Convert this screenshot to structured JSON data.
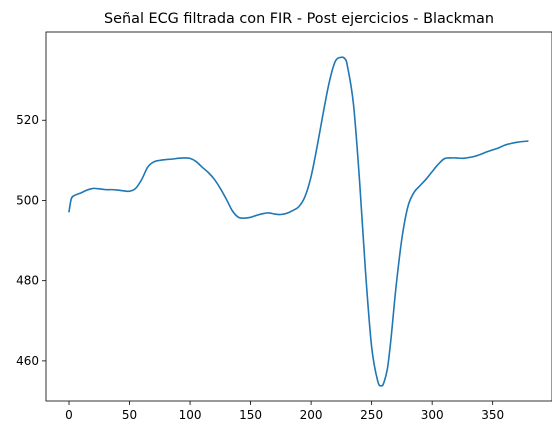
{
  "chart_data": {
    "type": "line",
    "title": "Señal ECG filtrada con FIR - Post ejercicios - Blackman",
    "xlabel": "",
    "ylabel": "",
    "xlim": [
      -19,
      399
    ],
    "ylim": [
      450,
      542
    ],
    "xticks": [
      0,
      50,
      100,
      150,
      200,
      250,
      300,
      350
    ],
    "yticks": [
      460,
      480,
      500,
      520
    ],
    "grid": false,
    "legend": "none",
    "series": [
      {
        "color": "#1f77b4",
        "x": [
          0,
          2,
          5,
          10,
          15,
          20,
          25,
          30,
          35,
          40,
          45,
          50,
          55,
          60,
          65,
          70,
          75,
          80,
          85,
          90,
          95,
          100,
          105,
          110,
          115,
          120,
          125,
          130,
          135,
          140,
          145,
          150,
          155,
          160,
          165,
          170,
          175,
          180,
          185,
          190,
          195,
          200,
          205,
          210,
          215,
          220,
          225,
          228,
          230,
          235,
          240,
          245,
          250,
          255,
          258,
          260,
          263,
          266,
          270,
          275,
          280,
          285,
          290,
          295,
          300,
          305,
          310,
          315,
          320,
          325,
          330,
          335,
          340,
          345,
          350,
          355,
          360,
          365,
          370,
          375,
          379
        ],
        "y": [
          497.2,
          500.5,
          501.3,
          501.9,
          502.6,
          503.0,
          502.9,
          502.7,
          502.7,
          502.6,
          502.4,
          502.3,
          503.0,
          505.2,
          508.3,
          509.6,
          510.0,
          510.2,
          510.3,
          510.5,
          510.6,
          510.5,
          509.7,
          508.3,
          507.0,
          505.3,
          503.0,
          500.3,
          497.4,
          495.8,
          495.6,
          495.8,
          496.3,
          496.7,
          496.9,
          496.6,
          496.5,
          496.8,
          497.5,
          498.5,
          501.0,
          506.0,
          513.5,
          521.8,
          529.5,
          534.7,
          535.7,
          535.3,
          533.5,
          524.0,
          505.0,
          482.0,
          463.5,
          455.0,
          453.8,
          454.5,
          458.0,
          465.5,
          478.0,
          490.5,
          498.5,
          502.0,
          503.7,
          505.3,
          507.2,
          509.0,
          510.4,
          510.6,
          510.6,
          510.5,
          510.7,
          511.0,
          511.5,
          512.1,
          512.6,
          513.1,
          513.8,
          514.2,
          514.5,
          514.7,
          514.8
        ]
      }
    ]
  }
}
